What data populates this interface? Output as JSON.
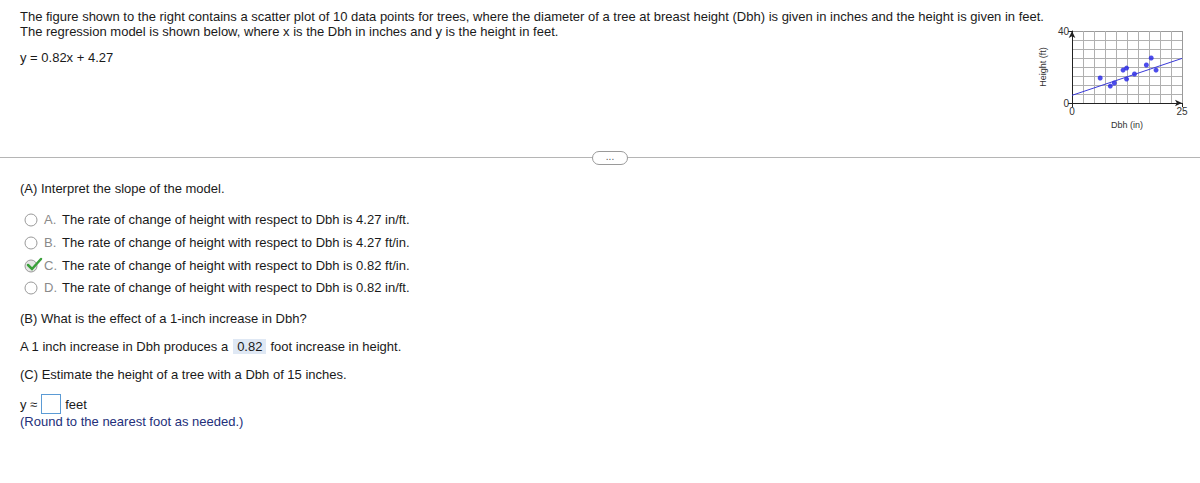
{
  "problem": {
    "text": "The figure shown to the right contains a scatter plot of 10 data points for trees, where the diameter of a tree at breast height (Dbh) is given in inches and the height is given in feet. The regression model is shown below, where x is the Dbh in inches and y is the height in feet.",
    "equation": "y = 0.82x + 4.27"
  },
  "chart_data": {
    "type": "scatter",
    "x_label": "Dbh (in)",
    "y_label": "Height (ft)",
    "x": [
      6.4,
      8.7,
      9.6,
      11.6,
      12.4,
      12.4,
      14.2,
      16.9,
      18.0,
      19.1
    ],
    "values": [
      13.9,
      9.4,
      11.1,
      18.3,
      19.4,
      13.3,
      16.1,
      21.1,
      25.0,
      18.3
    ],
    "color": "#1f1fe6",
    "marker": "circle",
    "xlim": [
      0,
      25
    ],
    "xticks": [
      0,
      25
    ],
    "ylim": [
      0,
      40
    ],
    "yticks": [
      0,
      40
    ],
    "grid": true,
    "regression": {
      "slope": 0.82,
      "intercept": 4.27,
      "color": "#3a3ad8"
    }
  },
  "more_button": "...",
  "part_a": {
    "question": "(A) Interpret the slope of the model.",
    "options": [
      {
        "letter": "A.",
        "text": "The rate of change of height with respect to Dbh is 4.27 in/ft."
      },
      {
        "letter": "B.",
        "text": "The rate of change of height with respect to Dbh is 4.27 ft/in."
      },
      {
        "letter": "C.",
        "text": "The rate of change of height with respect to Dbh is 0.82 ft/in."
      },
      {
        "letter": "D.",
        "text": "The rate of change of height with respect to Dbh is 0.82 in/ft."
      }
    ],
    "selected": "C."
  },
  "part_b": {
    "question": "(B) What is the effect of a 1-inch increase in Dbh?",
    "before": "A 1 inch increase in Dbh produces a",
    "answer": "0.82",
    "after": "foot increase in height."
  },
  "part_c": {
    "question": "(C) Estimate the height of a tree with a Dbh of 15 inches.",
    "prefix": "y ≈",
    "suffix": "feet",
    "hint": "(Round to the nearest foot as needed.)"
  }
}
